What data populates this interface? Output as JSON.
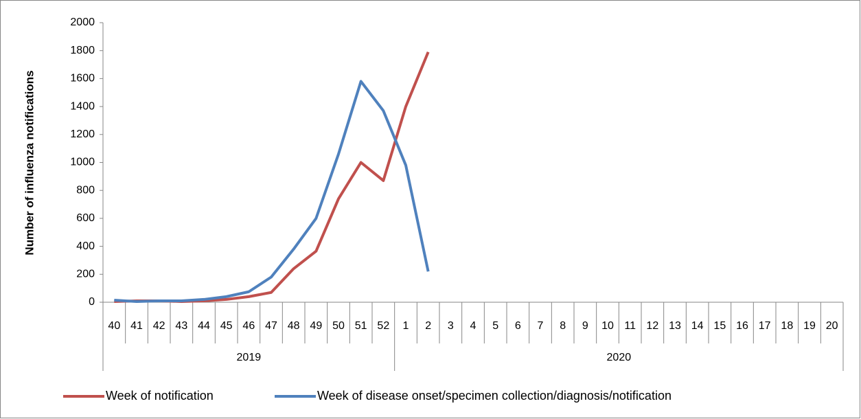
{
  "chart_data": {
    "type": "line",
    "y_label": "Number of influenza notifications",
    "category_groups": [
      {
        "label": "2019",
        "categories": [
          "40",
          "41",
          "42",
          "43",
          "44",
          "45",
          "46",
          "47",
          "48",
          "49",
          "50",
          "51",
          "52"
        ]
      },
      {
        "label": "2020",
        "categories": [
          "1",
          "2",
          "3",
          "4",
          "5",
          "6",
          "7",
          "8",
          "9",
          "10",
          "11",
          "12",
          "13",
          "14",
          "15",
          "16",
          "17",
          "18",
          "19",
          "20"
        ]
      }
    ],
    "series": [
      {
        "name": "Week of notification",
        "color": "#c0504d",
        "values": [
          5,
          10,
          10,
          5,
          10,
          20,
          40,
          70,
          240,
          365,
          740,
          1000,
          870,
          1400,
          1790,
          null,
          null,
          null,
          null,
          null,
          null,
          null,
          null,
          null,
          null,
          null,
          null,
          null,
          null,
          null,
          null,
          null,
          null
        ]
      },
      {
        "name": "Week of disease onset/specimen collection/diagnosis/notification",
        "color": "#4f81bd",
        "values": [
          15,
          5,
          10,
          10,
          20,
          40,
          75,
          180,
          380,
          600,
          1060,
          1580,
          1370,
          980,
          220,
          null,
          null,
          null,
          null,
          null,
          null,
          null,
          null,
          null,
          null,
          null,
          null,
          null,
          null,
          null,
          null,
          null,
          null
        ]
      }
    ],
    "ylim": [
      0,
      2000
    ],
    "yticks": [
      0,
      200,
      400,
      600,
      800,
      1000,
      1200,
      1400,
      1600,
      1800,
      2000
    ],
    "grid": false,
    "legend": "bottom"
  }
}
